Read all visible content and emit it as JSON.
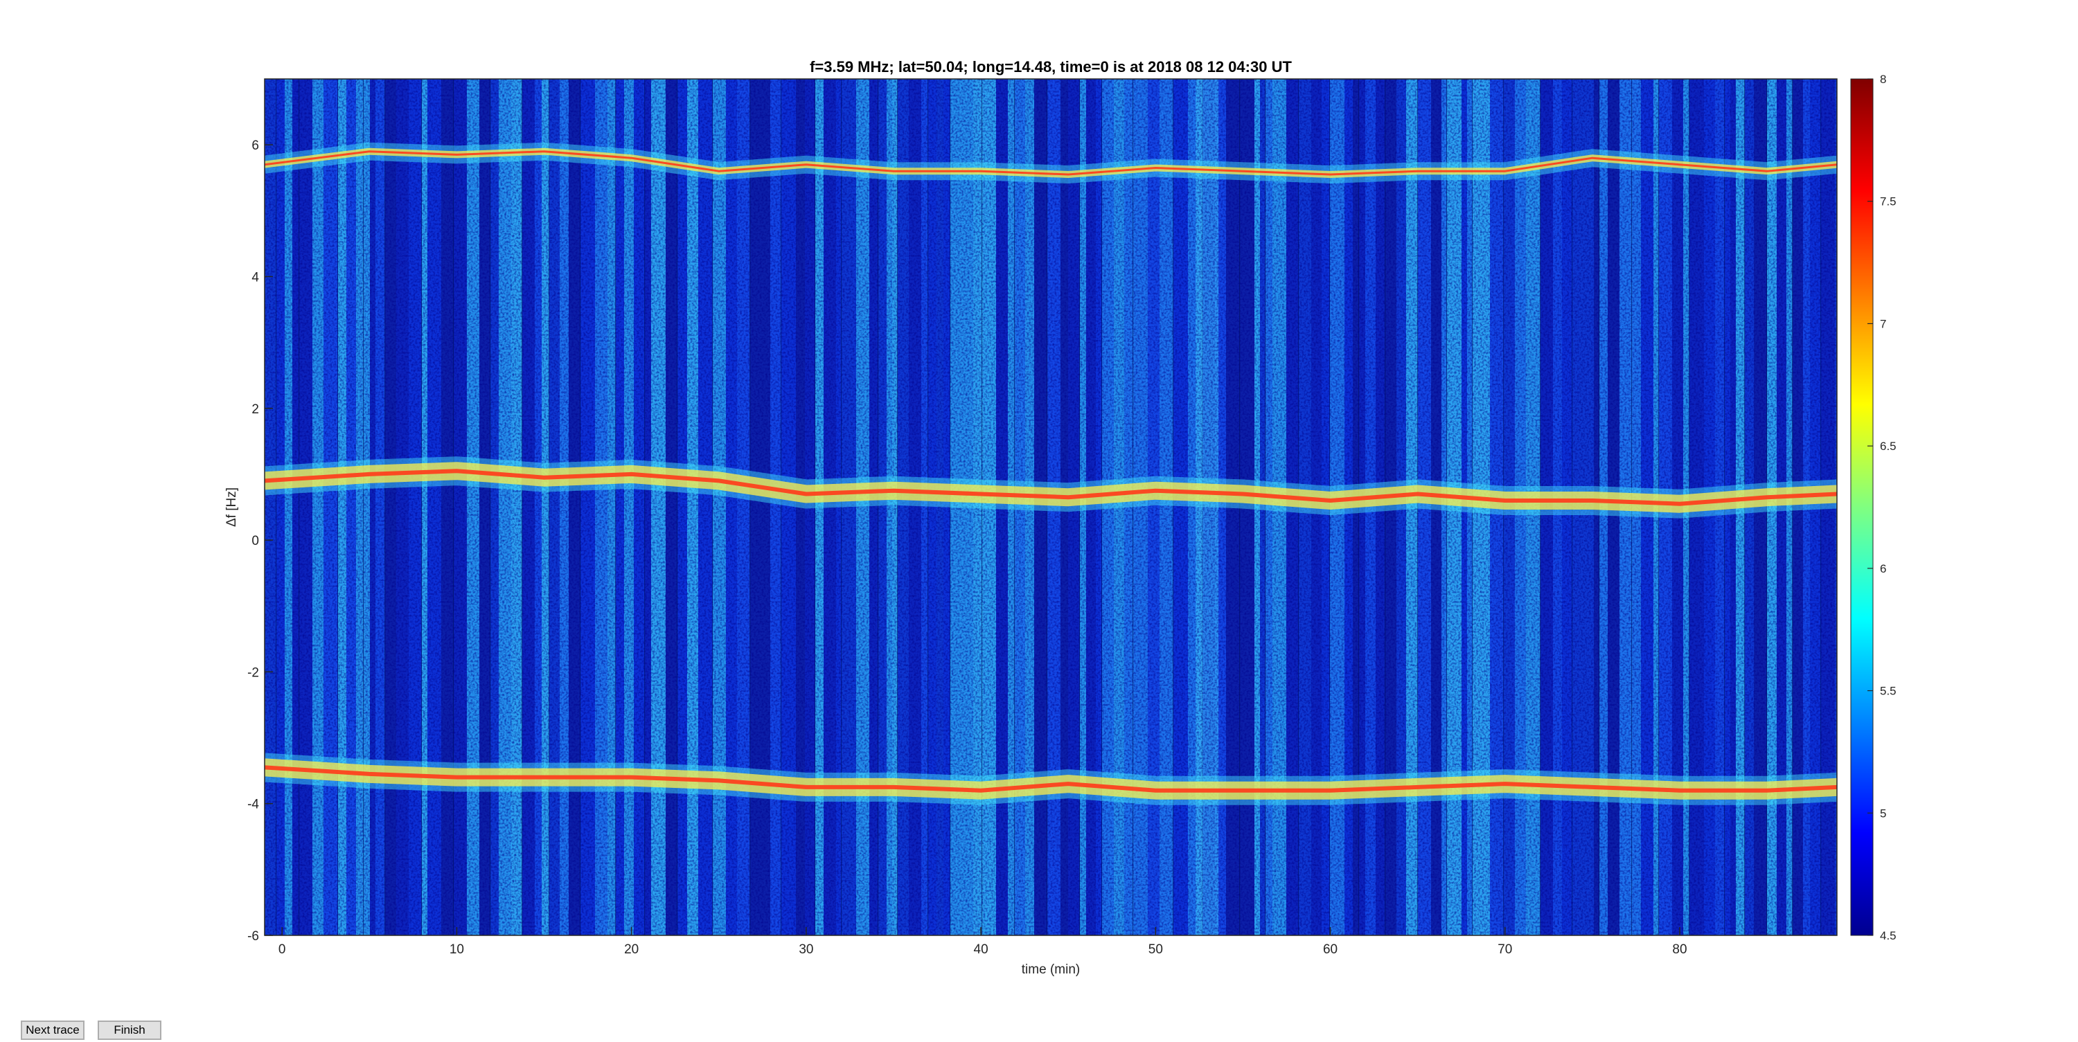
{
  "controls": {
    "next_trace_label": "Next trace",
    "finish_label": "Finish"
  },
  "chart_data": {
    "type": "heatmap",
    "title": "f=3.59 MHz;  lat=50.04; long=14.48, time=0 is at 2018 08 12 04:30 UT",
    "xlabel": "time (min)",
    "ylabel": "Δf [Hz]",
    "xlim": [
      -1,
      89
    ],
    "ylim": [
      -6,
      7
    ],
    "xticks": [
      0,
      10,
      20,
      30,
      40,
      50,
      60,
      70,
      80
    ],
    "yticks": [
      -6,
      -4,
      -2,
      0,
      2,
      4,
      6
    ],
    "colorbar": {
      "range": [
        4.5,
        8
      ],
      "ticks": [
        4.5,
        5,
        5.5,
        6,
        6.5,
        7,
        7.5,
        8
      ],
      "colormap": "jet"
    },
    "traces": [
      {
        "x": [
          -1,
          5,
          10,
          15,
          20,
          25,
          30,
          35,
          40,
          45,
          50,
          55,
          60,
          65,
          70,
          75,
          80,
          85,
          89
        ],
        "y": [
          0.9,
          1.0,
          1.05,
          0.95,
          1.0,
          0.9,
          0.7,
          0.75,
          0.7,
          0.65,
          0.75,
          0.7,
          0.6,
          0.7,
          0.6,
          0.6,
          0.55,
          0.65,
          0.7
        ]
      },
      {
        "x": [
          -1,
          5,
          10,
          15,
          20,
          25,
          30,
          35,
          40,
          45,
          50,
          55,
          60,
          65,
          70,
          75,
          80,
          85,
          89
        ],
        "y": [
          -3.45,
          -3.55,
          -3.6,
          -3.6,
          -3.6,
          -3.65,
          -3.75,
          -3.75,
          -3.8,
          -3.7,
          -3.8,
          -3.8,
          -3.8,
          -3.75,
          -3.7,
          -3.75,
          -3.8,
          -3.8,
          -3.75
        ]
      },
      {
        "x": [
          -1,
          5,
          10,
          15,
          20,
          25,
          30,
          35,
          40,
          45,
          50,
          55,
          60,
          65,
          70,
          75,
          80,
          85,
          89
        ],
        "y": [
          5.7,
          5.9,
          5.85,
          5.9,
          5.8,
          5.6,
          5.7,
          5.6,
          5.6,
          5.55,
          5.65,
          5.6,
          5.55,
          5.6,
          5.6,
          5.8,
          5.7,
          5.6,
          5.7
        ]
      }
    ]
  }
}
